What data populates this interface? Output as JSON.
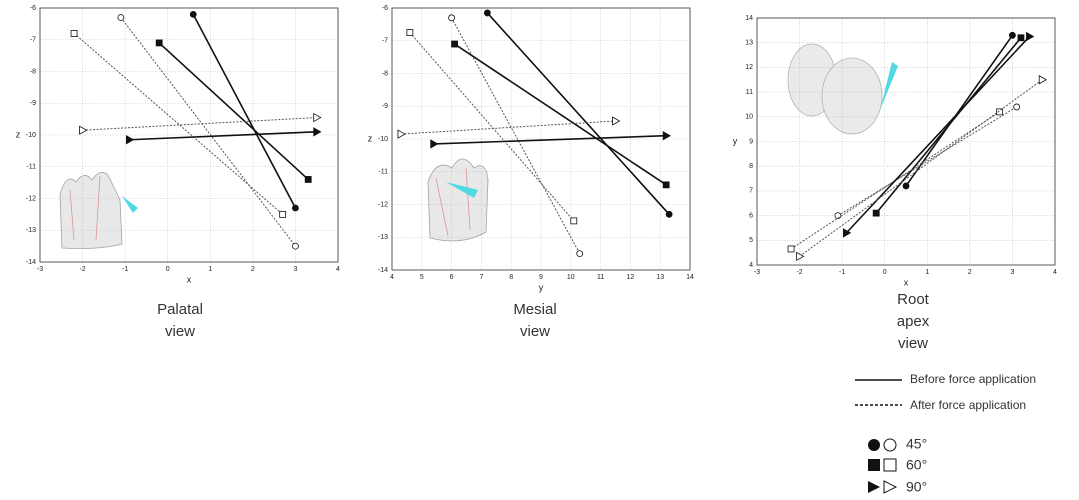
{
  "chart_data": [
    {
      "type": "line",
      "xlabel": "x",
      "ylabel": "z",
      "caption": [
        "Palatal",
        "view"
      ],
      "xlim": [
        -3,
        4
      ],
      "ylim": [
        -14,
        -6
      ],
      "xticks": [
        -3,
        -2,
        -1,
        0,
        1,
        2,
        3,
        4
      ],
      "yticks": [
        -14,
        -13,
        -12,
        -11,
        -10,
        -9,
        -8,
        -7,
        -6
      ],
      "grid": true,
      "series": [
        {
          "marker": "circle",
          "filled": true,
          "dashed": false,
          "color": "#111",
          "x": [
            0.6,
            3.0
          ],
          "values": [
            -6.2,
            -12.3
          ]
        },
        {
          "marker": "circle",
          "filled": false,
          "dashed": true,
          "color": "#555",
          "x": [
            -1.1,
            3.0
          ],
          "values": [
            -6.3,
            -13.5
          ]
        },
        {
          "marker": "square",
          "filled": true,
          "dashed": false,
          "color": "#111",
          "x": [
            -0.2,
            3.3
          ],
          "values": [
            -7.1,
            -11.4
          ]
        },
        {
          "marker": "square",
          "filled": false,
          "dashed": true,
          "color": "#555",
          "x": [
            -2.2,
            2.7
          ],
          "values": [
            -6.8,
            -12.5
          ]
        },
        {
          "marker": "triangle",
          "filled": true,
          "dashed": false,
          "color": "#111",
          "x": [
            -0.9,
            3.5
          ],
          "values": [
            -10.15,
            -9.9
          ]
        },
        {
          "marker": "triangle",
          "filled": false,
          "dashed": true,
          "color": "#555",
          "x": [
            -2.0,
            3.5
          ],
          "values": [
            -9.85,
            -9.45
          ]
        }
      ]
    },
    {
      "type": "line",
      "xlabel": "y",
      "ylabel": "z",
      "caption": [
        "Mesial",
        "view"
      ],
      "xlim": [
        4,
        14
      ],
      "ylim": [
        -14,
        -6
      ],
      "xticks": [
        4,
        5,
        6,
        7,
        8,
        9,
        10,
        11,
        12,
        13,
        14
      ],
      "yticks": [
        -14,
        -13,
        -12,
        -11,
        -10,
        -9,
        -8,
        -7,
        -6
      ],
      "grid": true,
      "series": [
        {
          "marker": "circle",
          "filled": true,
          "dashed": false,
          "color": "#111",
          "x": [
            7.2,
            13.3
          ],
          "values": [
            -6.15,
            -12.3
          ]
        },
        {
          "marker": "circle",
          "filled": false,
          "dashed": true,
          "color": "#555",
          "x": [
            6.0,
            10.3
          ],
          "values": [
            -6.3,
            -13.5
          ]
        },
        {
          "marker": "square",
          "filled": true,
          "dashed": false,
          "color": "#111",
          "x": [
            6.1,
            13.2
          ],
          "values": [
            -7.1,
            -11.4
          ]
        },
        {
          "marker": "square",
          "filled": false,
          "dashed": true,
          "color": "#555",
          "x": [
            4.6,
            10.1
          ],
          "values": [
            -6.75,
            -12.5
          ]
        },
        {
          "marker": "triangle",
          "filled": true,
          "dashed": false,
          "color": "#111",
          "x": [
            5.4,
            13.2
          ],
          "values": [
            -10.15,
            -9.9
          ]
        },
        {
          "marker": "triangle",
          "filled": false,
          "dashed": true,
          "color": "#555",
          "x": [
            4.3,
            11.5
          ],
          "values": [
            -9.85,
            -9.45
          ]
        }
      ]
    },
    {
      "type": "line",
      "xlabel": "x",
      "ylabel": "y",
      "caption": [
        "Root",
        "apex",
        "view"
      ],
      "xlim": [
        -3,
        4
      ],
      "ylim": [
        4,
        14
      ],
      "xticks": [
        -3,
        -2,
        -1,
        0,
        1,
        2,
        3,
        4
      ],
      "yticks": [
        4,
        5,
        6,
        7,
        8,
        9,
        10,
        11,
        12,
        13,
        14
      ],
      "grid": true,
      "series": [
        {
          "marker": "circle",
          "filled": true,
          "dashed": false,
          "color": "#111",
          "x": [
            0.5,
            3.0
          ],
          "values": [
            7.2,
            13.3
          ]
        },
        {
          "marker": "circle",
          "filled": false,
          "dashed": true,
          "color": "#555",
          "x": [
            -1.1,
            3.1
          ],
          "values": [
            6.0,
            10.4
          ]
        },
        {
          "marker": "square",
          "filled": true,
          "dashed": false,
          "color": "#111",
          "x": [
            -0.2,
            3.2
          ],
          "values": [
            6.1,
            13.2
          ]
        },
        {
          "marker": "square",
          "filled": false,
          "dashed": true,
          "color": "#555",
          "x": [
            -2.2,
            2.7
          ],
          "values": [
            4.65,
            10.2
          ]
        },
        {
          "marker": "triangle",
          "filled": true,
          "dashed": false,
          "color": "#111",
          "x": [
            -0.9,
            3.4
          ],
          "values": [
            5.3,
            13.25
          ]
        },
        {
          "marker": "triangle",
          "filled": false,
          "dashed": true,
          "color": "#555",
          "x": [
            -2.0,
            3.7
          ],
          "values": [
            4.35,
            11.5
          ]
        }
      ]
    }
  ],
  "legend": {
    "line_styles": [
      "Before force application",
      "After force application"
    ],
    "angles": [
      "45°",
      "60°",
      "90°"
    ]
  }
}
